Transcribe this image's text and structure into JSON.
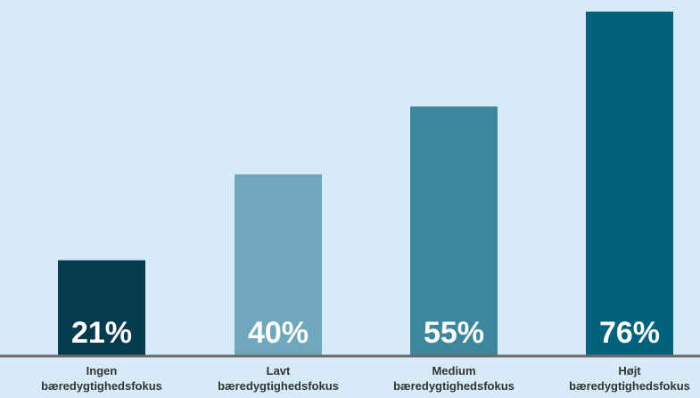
{
  "chart_data": {
    "type": "bar",
    "title": "",
    "xlabel": "",
    "ylabel": "",
    "categories": [
      [
        "Ingen",
        "bæredygtighedsfokus"
      ],
      [
        "Lavt",
        "bæredygtighedsfokus"
      ],
      [
        "Medium",
        "bæredygtighedsfokus"
      ],
      [
        "Højt",
        "bæredygtighedsfokus"
      ]
    ],
    "values": [
      21,
      40,
      55,
      76
    ],
    "value_labels": [
      "21%",
      "40%",
      "55%",
      "76%"
    ],
    "ylim": [
      0,
      76
    ],
    "grid": false,
    "colors": [
      "#053b4e",
      "#6fa8bd",
      "#3c869e",
      "#02617c"
    ],
    "axis_color": "#6b6b6b",
    "background": "#d6eaf8"
  }
}
